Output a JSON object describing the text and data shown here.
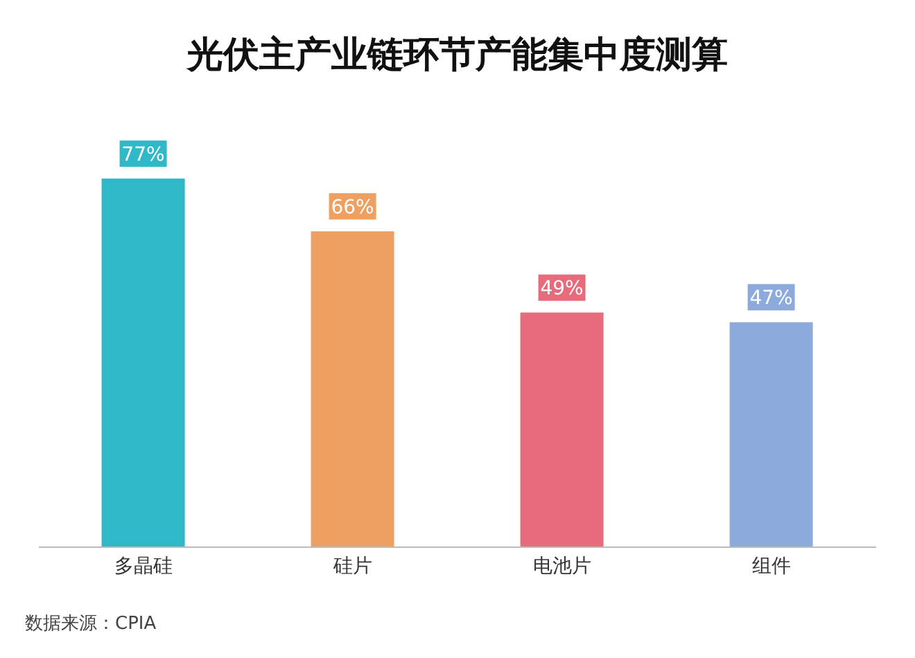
{
  "chart_data": {
    "type": "bar",
    "title": "光伏主产业链环节产能集中度测算",
    "categories": [
      "多晶硅",
      "硅片",
      "电池片",
      "组件"
    ],
    "values": [
      77,
      66,
      49,
      47
    ],
    "value_labels": [
      "77%",
      "66%",
      "49%",
      "47%"
    ],
    "colors": [
      "#2fb8c8",
      "#eea062",
      "#e86b7b",
      "#8cabdc"
    ],
    "annotations": [
      "数据来源：CPIA"
    ]
  }
}
